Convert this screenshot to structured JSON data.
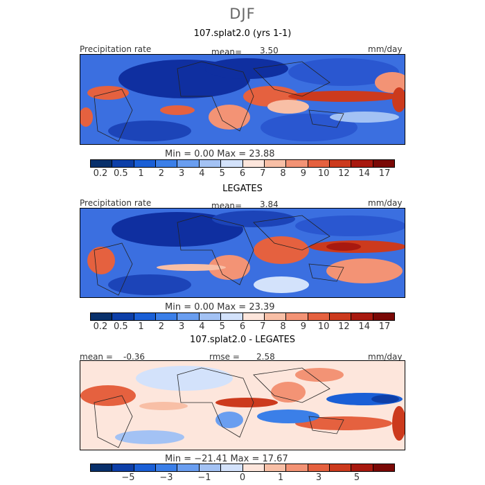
{
  "figure": {
    "season": "DJF",
    "units": "mm/day",
    "quantity": "Precipitation rate"
  },
  "panel1": {
    "title": "107.splat2.0 (yrs 1-1)",
    "label": "Precipitation rate",
    "mean_label": "mean=",
    "mean": "3.50",
    "units": "mm/day",
    "minmax": "Min =    0.00  Max =  23.88"
  },
  "panel2": {
    "title": "LEGATES",
    "label": "Precipitation rate",
    "mean_label": "mean=",
    "mean": "3.84",
    "units": "mm/day",
    "minmax": "Min =    0.00  Max =  23.39"
  },
  "panel3": {
    "title": "107.splat2.0 - LEGATES",
    "mean_label": "mean =",
    "mean": "-0.36",
    "rmse_label": "rmse =",
    "rmse": "2.58",
    "units": "mm/day",
    "minmax": "Min = −21.41  Max =  17.67"
  },
  "colorbar_abs": {
    "colors": [
      "#08306b",
      "#0d3fa8",
      "#1a5fd6",
      "#3b7fe8",
      "#6a9ef0",
      "#a3c2f4",
      "#d3e2fb",
      "#fde6dc",
      "#f8bfa6",
      "#f39375",
      "#e5613f",
      "#cc3a1d",
      "#a8190f",
      "#7a0906"
    ],
    "tick_labels": [
      "0.2",
      "0.5",
      "1",
      "2",
      "3",
      "4",
      "5",
      "6",
      "7",
      "8",
      "9",
      "10",
      "12",
      "14",
      "17"
    ]
  },
  "colorbar_diff": {
    "colors": [
      "#08306b",
      "#0d3fa8",
      "#1a5fd6",
      "#3b7fe8",
      "#6a9ef0",
      "#a3c2f4",
      "#d3e2fb",
      "#fde6dc",
      "#f8bfa6",
      "#f39375",
      "#e5613f",
      "#cc3a1d",
      "#a8190f",
      "#7a0906"
    ],
    "tick_labels": [
      "−5",
      "−3",
      "−1",
      "0",
      "1",
      "3",
      "5"
    ]
  }
}
